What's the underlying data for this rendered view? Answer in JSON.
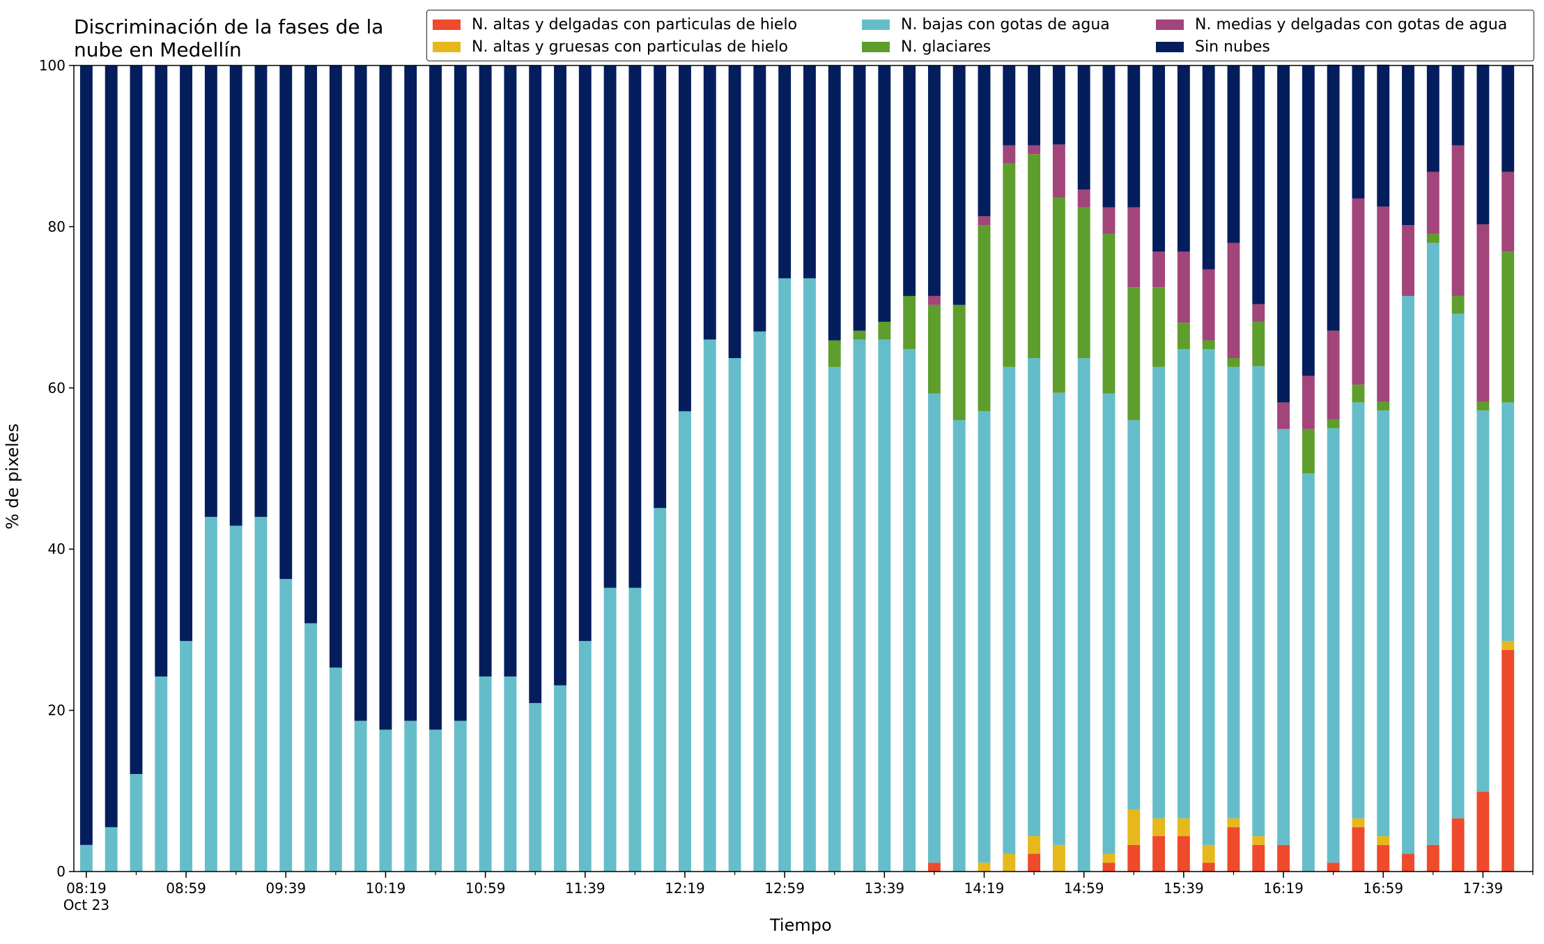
{
  "chart_data": {
    "type": "bar",
    "stacked": true,
    "title": "Discriminación de la fases de la\nnube en Medellín",
    "xlabel": "Tiempo",
    "ylabel": "% de pixeles",
    "ylim": [
      0,
      100
    ],
    "yticks": [
      "0",
      "20",
      "40",
      "60",
      "80",
      "100"
    ],
    "xtick_labels": [
      {
        "index": 0,
        "label": "08:19",
        "sublabel": "Oct 23"
      },
      {
        "index": 4,
        "label": "08:59"
      },
      {
        "index": 8,
        "label": "09:39"
      },
      {
        "index": 12,
        "label": "10:19"
      },
      {
        "index": 16,
        "label": "10:59"
      },
      {
        "index": 20,
        "label": "11:39"
      },
      {
        "index": 24,
        "label": "12:19"
      },
      {
        "index": 28,
        "label": "12:59"
      },
      {
        "index": 32,
        "label": "13:39"
      },
      {
        "index": 36,
        "label": "14:19"
      },
      {
        "index": 40,
        "label": "14:59"
      },
      {
        "index": 44,
        "label": "15:39"
      },
      {
        "index": 48,
        "label": "16:19"
      },
      {
        "index": 52,
        "label": "16:59"
      },
      {
        "index": 56,
        "label": "17:39"
      }
    ],
    "categories": [
      "08:19",
      "08:29",
      "08:39",
      "08:49",
      "08:59",
      "09:09",
      "09:19",
      "09:29",
      "09:39",
      "09:49",
      "09:59",
      "10:09",
      "10:19",
      "10:29",
      "10:39",
      "10:49",
      "10:59",
      "11:09",
      "11:19",
      "11:29",
      "11:39",
      "11:49",
      "11:59",
      "12:09",
      "12:19",
      "12:29",
      "12:39",
      "12:49",
      "12:59",
      "13:09",
      "13:19",
      "13:29",
      "13:39",
      "13:49",
      "13:59",
      "14:09",
      "14:19",
      "14:29",
      "14:39",
      "14:49",
      "14:59",
      "15:09",
      "15:19",
      "15:29",
      "15:39",
      "15:49",
      "15:59",
      "16:09",
      "16:19",
      "16:29",
      "16:39",
      "16:49",
      "16:59",
      "17:09",
      "17:19",
      "17:29",
      "17:39",
      "17:49"
    ],
    "legend_position": "top-right",
    "grid": false,
    "series": [
      {
        "name": "N. altas y delgadas con particulas de hielo",
        "color": "#ee4a2b",
        "values": [
          0,
          0,
          0,
          0,
          0,
          0,
          0,
          0,
          0,
          0,
          0,
          0,
          0,
          0,
          0,
          0,
          0,
          0,
          0,
          0,
          0,
          0,
          0,
          0,
          0,
          0,
          0,
          0,
          0,
          0,
          0,
          0,
          0,
          0,
          1.1,
          0,
          0,
          0,
          2.2,
          0,
          0,
          1.1,
          3.3,
          4.4,
          4.4,
          1.1,
          5.5,
          3.3,
          3.3,
          0,
          1.1,
          5.5,
          3.3,
          2.2,
          3.3,
          6.6,
          9.9,
          27.5
        ]
      },
      {
        "name": "N. altas y gruesas con particulas de hielo",
        "color": "#e6b81c",
        "values": [
          0,
          0,
          0,
          0,
          0,
          0,
          0,
          0,
          0,
          0,
          0,
          0,
          0,
          0,
          0,
          0,
          0,
          0,
          0,
          0,
          0,
          0,
          0,
          0,
          0,
          0,
          0,
          0,
          0,
          0,
          0,
          0,
          0,
          0,
          0,
          0,
          1.1,
          2.2,
          2.2,
          3.3,
          0,
          1.1,
          4.4,
          2.2,
          2.2,
          2.2,
          1.1,
          1.1,
          0,
          0,
          0,
          1.1,
          1.1,
          0,
          0,
          0,
          0,
          1.1
        ]
      },
      {
        "name": "N. bajas con gotas de agua",
        "color": "#66bdca",
        "values": [
          3.3,
          5.5,
          12.1,
          24.2,
          28.6,
          44.0,
          42.9,
          44.0,
          36.3,
          30.8,
          25.3,
          18.7,
          17.6,
          18.7,
          17.6,
          18.7,
          24.2,
          24.2,
          20.9,
          23.1,
          28.6,
          35.2,
          35.2,
          45.1,
          57.1,
          66.0,
          63.7,
          67.0,
          73.6,
          73.6,
          62.6,
          66.0,
          66.0,
          64.8,
          58.2,
          56.0,
          56.0,
          60.4,
          59.3,
          56.1,
          63.7,
          57.1,
          48.3,
          56.0,
          58.2,
          61.5,
          56.0,
          58.3,
          51.6,
          49.4,
          53.9,
          51.6,
          52.8,
          69.2,
          74.7,
          62.6,
          47.3,
          29.6
        ]
      },
      {
        "name": "N. glaciares",
        "color": "#5e9e2c",
        "values": [
          0,
          0,
          0,
          0,
          0,
          0,
          0,
          0,
          0,
          0,
          0,
          0,
          0,
          0,
          0,
          0,
          0,
          0,
          0,
          0,
          0,
          0,
          0,
          0,
          0,
          0,
          0,
          0,
          0,
          0,
          3.3,
          1.1,
          2.2,
          6.6,
          11.0,
          14.3,
          23.1,
          25.3,
          25.3,
          24.2,
          18.7,
          19.8,
          16.5,
          9.9,
          3.3,
          1.1,
          1.1,
          5.5,
          0,
          5.5,
          1.1,
          2.2,
          1.1,
          0,
          1.1,
          2.2,
          1.1,
          18.7
        ]
      },
      {
        "name": "N. medias y delgadas con gotas de agua",
        "color": "#a2457a",
        "values": [
          0,
          0,
          0,
          0,
          0,
          0,
          0,
          0,
          0,
          0,
          0,
          0,
          0,
          0,
          0,
          0,
          0,
          0,
          0,
          0,
          0,
          0,
          0,
          0,
          0,
          0,
          0,
          0,
          0,
          0,
          0,
          0,
          0,
          0,
          1.1,
          0,
          1.1,
          2.2,
          1.1,
          6.6,
          2.2,
          3.3,
          9.9,
          4.4,
          8.8,
          8.8,
          14.3,
          2.2,
          3.3,
          6.6,
          11.0,
          23.1,
          24.2,
          8.8,
          7.7,
          18.7,
          22.0,
          9.9
        ]
      },
      {
        "name": "Sin nubes",
        "color": "#041e5d",
        "values": [
          96.7,
          94.5,
          87.9,
          75.8,
          71.4,
          56.0,
          57.1,
          56.0,
          63.7,
          69.2,
          74.7,
          81.3,
          82.4,
          81.3,
          82.4,
          81.3,
          75.8,
          75.8,
          79.1,
          76.9,
          71.4,
          64.8,
          64.8,
          54.9,
          42.9,
          34.0,
          36.3,
          33.0,
          26.4,
          26.4,
          34.1,
          32.9,
          31.8,
          28.6,
          28.6,
          29.7,
          18.7,
          9.9,
          9.9,
          9.8,
          15.4,
          17.6,
          17.6,
          23.1,
          23.1,
          25.3,
          22.0,
          29.6,
          41.8,
          38.5,
          33.0,
          16.5,
          17.6,
          19.8,
          13.2,
          9.9,
          19.8,
          13.2
        ]
      }
    ]
  },
  "legend": {
    "items": [
      {
        "label": "N. altas y delgadas con particulas de hielo",
        "color": "#ee4a2b"
      },
      {
        "label": "N. altas y gruesas con particulas de hielo",
        "color": "#e6b81c"
      },
      {
        "label": "N. bajas con gotas de agua",
        "color": "#66bdca"
      },
      {
        "label": "N. glaciares",
        "color": "#5e9e2c"
      },
      {
        "label": "N. medias y delgadas con gotas de agua",
        "color": "#a2457a"
      },
      {
        "label": "Sin nubes",
        "color": "#041e5d"
      }
    ]
  }
}
